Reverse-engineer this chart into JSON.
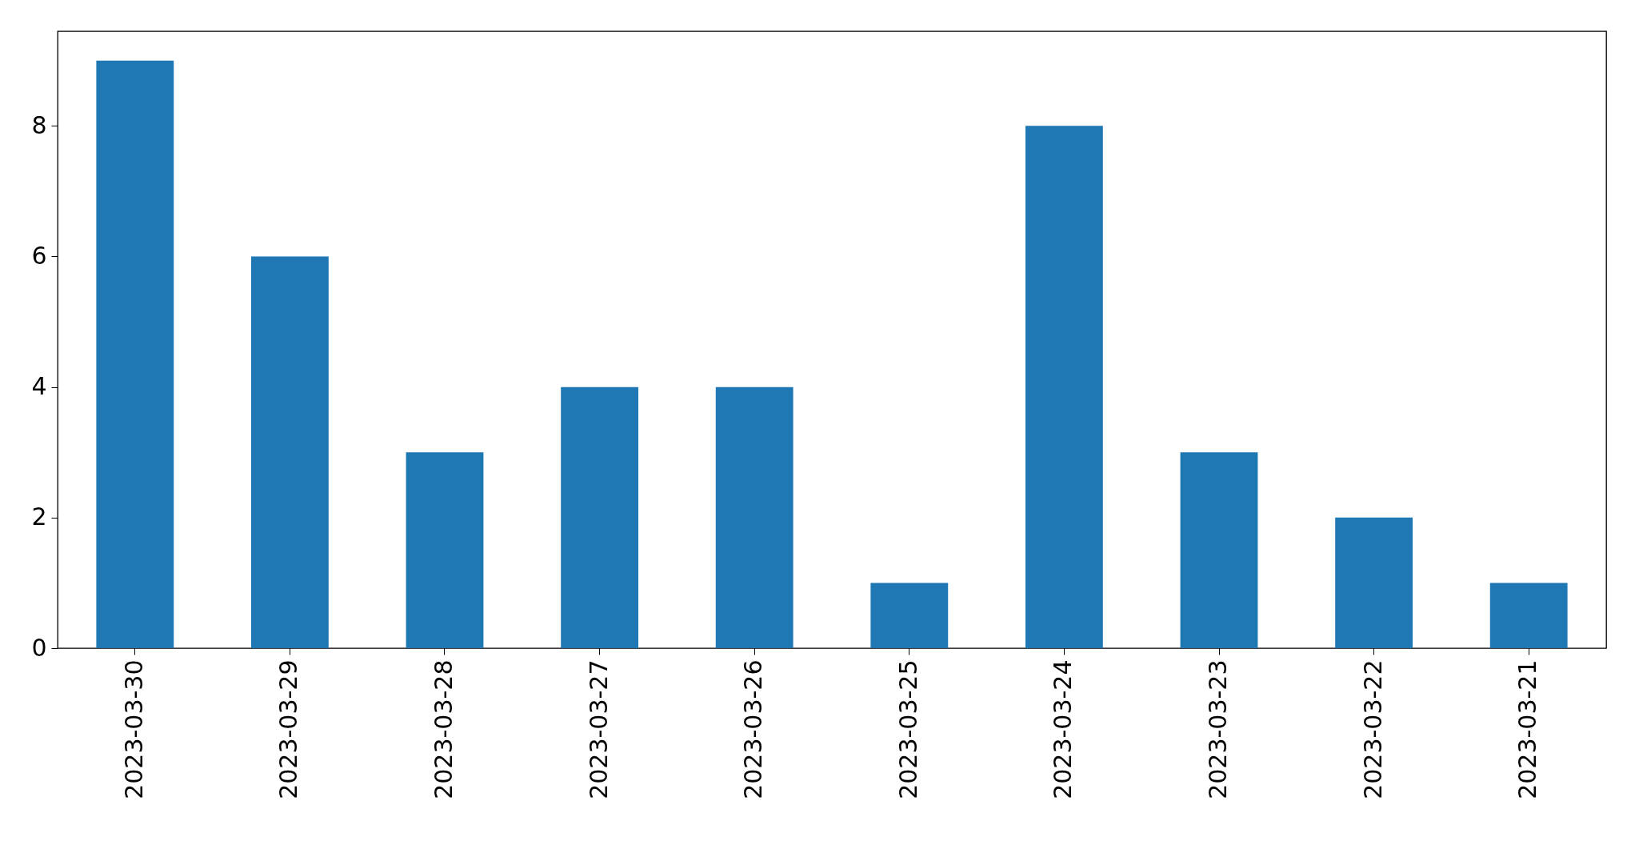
{
  "chart_data": {
    "type": "bar",
    "categories": [
      "2023-03-30",
      "2023-03-29",
      "2023-03-28",
      "2023-03-27",
      "2023-03-26",
      "2023-03-25",
      "2023-03-24",
      "2023-03-23",
      "2023-03-22",
      "2023-03-21"
    ],
    "values": [
      9,
      6,
      3,
      4,
      4,
      1,
      8,
      3,
      2,
      1
    ],
    "color": "#1f77b4",
    "ylim": [
      0,
      9.45
    ],
    "yticks": [
      0,
      2,
      4,
      6,
      8
    ],
    "grid": false
  }
}
